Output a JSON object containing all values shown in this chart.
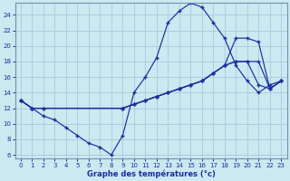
{
  "xlabel": "Graphe des températures (°c)",
  "background_color": "#cce8f0",
  "grid_color": "#aacfde",
  "line_color": "#1a2f9e",
  "xlim": [
    -0.5,
    23.5
  ],
  "ylim": [
    5.5,
    25.5
  ],
  "yticks": [
    6,
    8,
    10,
    12,
    14,
    16,
    18,
    20,
    22,
    24
  ],
  "xticks": [
    0,
    1,
    2,
    3,
    4,
    5,
    6,
    7,
    8,
    9,
    10,
    11,
    12,
    13,
    14,
    15,
    16,
    17,
    18,
    19,
    20,
    21,
    22,
    23
  ],
  "line1_x": [
    0,
    1,
    2,
    3,
    4,
    5,
    6,
    7,
    8,
    9,
    10,
    11,
    12,
    13,
    14,
    15,
    16,
    17,
    18,
    19,
    20,
    21,
    22,
    23
  ],
  "line1_y": [
    13,
    12,
    11,
    10.5,
    9.5,
    8.5,
    7.5,
    7,
    6,
    8.5,
    14,
    16,
    18.5,
    23,
    24.5,
    25.5,
    25,
    23,
    21,
    17.5,
    15.5,
    14,
    15,
    15.5
  ],
  "line2_x": [
    0,
    1,
    2,
    9,
    10,
    11,
    12,
    13,
    14,
    15,
    16,
    17,
    18,
    19,
    20,
    21,
    22,
    23
  ],
  "line2_y": [
    13,
    12,
    12,
    12,
    12.5,
    13,
    13.5,
    14,
    14.5,
    15,
    15.5,
    16.5,
    17.5,
    21,
    21,
    20.5,
    14.5,
    15.5
  ],
  "line3_x": [
    0,
    1,
    2,
    9,
    10,
    11,
    12,
    13,
    14,
    15,
    16,
    17,
    18,
    19,
    20,
    21,
    22,
    23
  ],
  "line3_y": [
    13,
    12,
    12,
    12,
    12.5,
    13,
    13.5,
    14,
    14.5,
    15,
    15.5,
    16.5,
    17.5,
    18,
    18,
    18,
    14.5,
    15.5
  ],
  "line4_x": [
    0,
    1,
    9,
    10,
    11,
    12,
    13,
    14,
    15,
    16,
    17,
    18,
    19,
    20,
    21,
    22,
    23
  ],
  "line4_y": [
    13,
    12,
    12,
    12.5,
    13,
    13.5,
    14,
    14.5,
    15,
    15.5,
    16.5,
    17.5,
    18,
    18,
    15,
    14.5,
    15.5
  ]
}
